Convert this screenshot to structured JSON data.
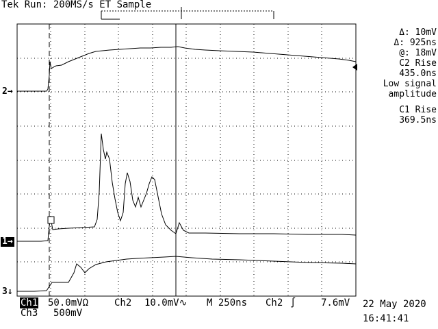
{
  "header": {
    "title": "Tek Run: 200MS/s ET Sample"
  },
  "readouts": {
    "cursor_delta_v": "Δ: 10mV",
    "cursor_delta_t": "Δ: 925ns",
    "cursor_at": "@: 18mV",
    "meas1_label": "C2 Rise",
    "meas1_value": "435.0ns",
    "meas2_label_line1": "Low signal",
    "meas2_label_line2": "amplitude",
    "meas3_label": "C1 Rise",
    "meas3_value": "369.5ns"
  },
  "channel_markers": {
    "ch2": "2→",
    "ch1": "1→",
    "ch3": "3↓"
  },
  "footer": {
    "ch1_label": "Ch1",
    "ch1_scale": "50.0mVΩ",
    "ch2_label": "Ch2",
    "ch2_scale": "10.0mV∿",
    "timebase": "M 250ns",
    "trigger_src": "Ch2",
    "trigger_slope": "∫",
    "trigger_level": "7.6mV",
    "ch3_label": "Ch3",
    "ch3_scale": "500mV",
    "date": "22 May 2020",
    "time": "16:41:41"
  },
  "colors": {
    "background": "#ffffff",
    "trace": "#000000"
  }
}
